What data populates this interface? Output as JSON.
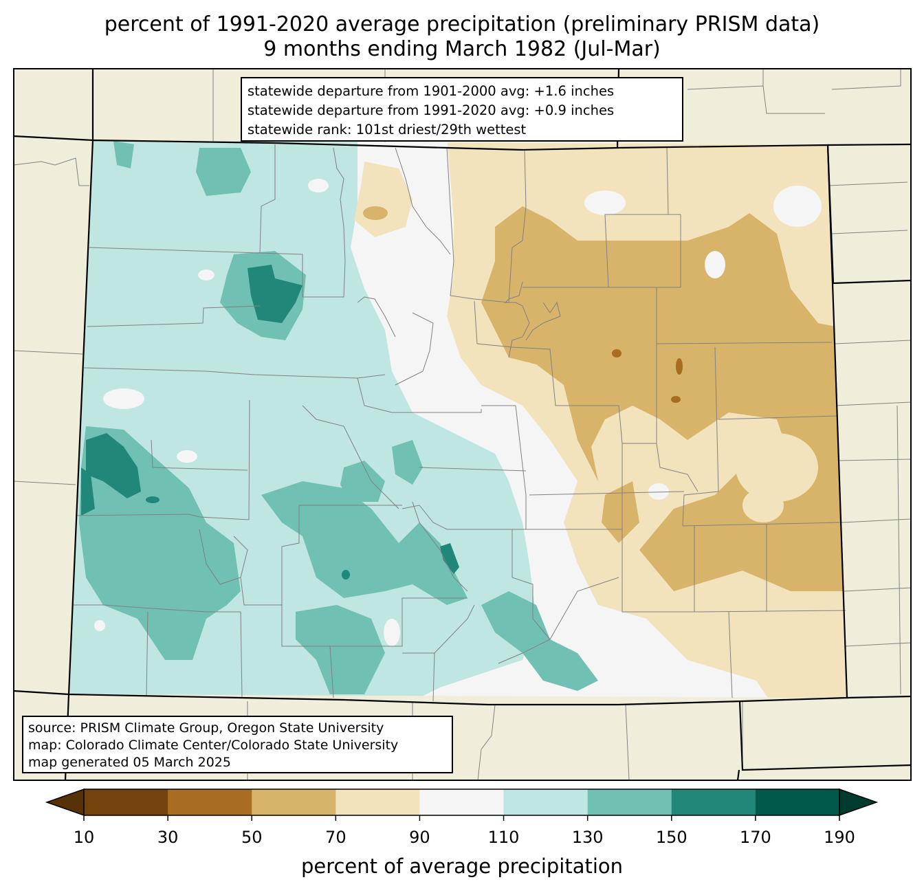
{
  "title": {
    "line1": "percent of 1991-2020 average precipitation (preliminary PRISM data)",
    "line2": "9 months ending March 1982 (Jul-Mar)"
  },
  "stats": {
    "line1": "statewide departure from 1901-2000 avg: +1.6 inches",
    "line2": "statewide departure from 1991-2020 avg: +0.9 inches",
    "line3": "statewide rank: 101st driest/29th wettest"
  },
  "source": {
    "line1": "source: PRISM Climate Group, Oregon State University",
    "line2": "map: Colorado Climate Center/Colorado State University",
    "line3": "map generated 05 March 2025"
  },
  "colorbar": {
    "label": "percent of average precipitation",
    "ticks": [
      "10",
      "30",
      "50",
      "70",
      "90",
      "110",
      "130",
      "150",
      "170",
      "190"
    ],
    "colors": [
      "#74420c",
      "#a86d22",
      "#d8b36a",
      "#f3e3bc",
      "#f4f5f4",
      "#bfe6e0",
      "#70c0b3",
      "#208779",
      "#00594a"
    ],
    "under_color": "#573108",
    "over_color": "#003b2f"
  },
  "colors": {
    "land_background": "#f0eedb",
    "county_lines": "#808080",
    "state_lines": "#000000"
  }
}
